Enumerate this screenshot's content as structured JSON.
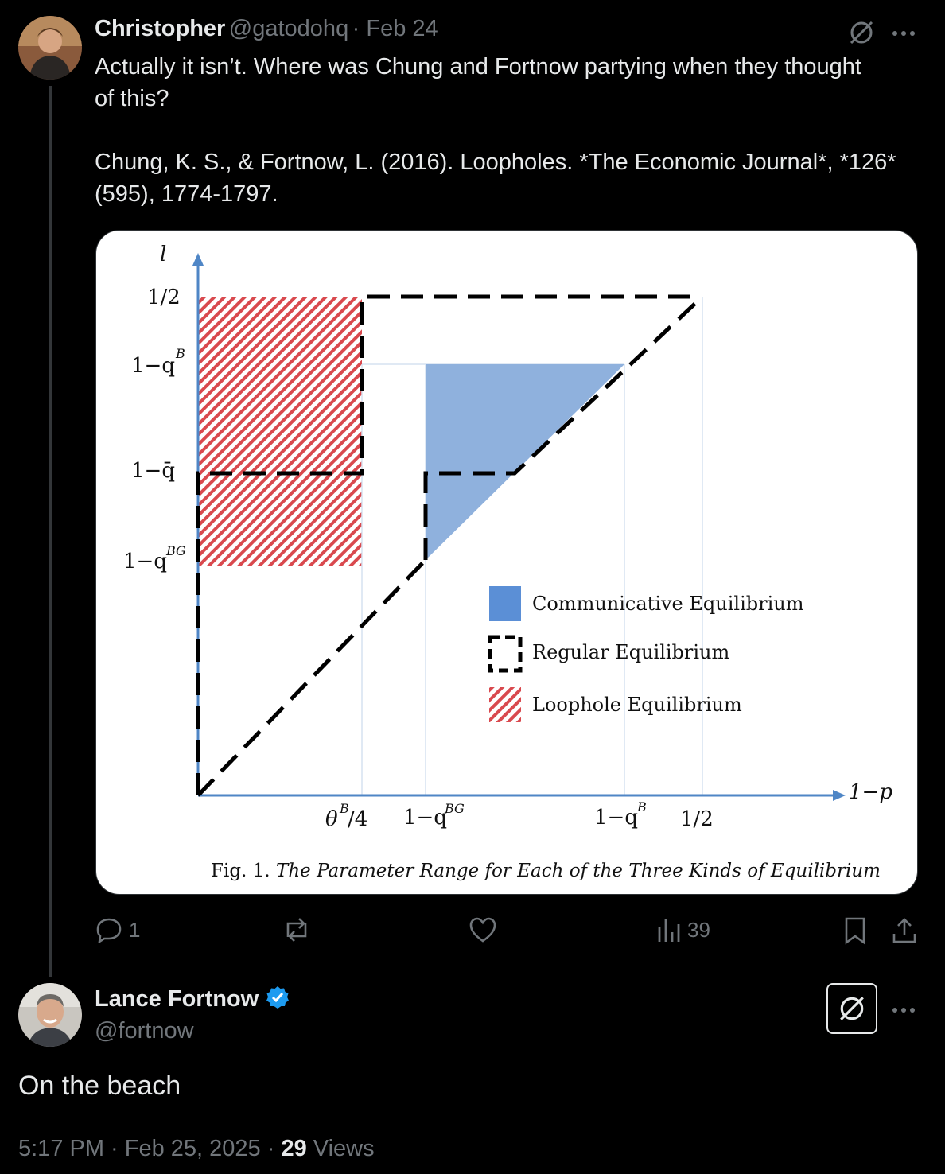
{
  "reply": {
    "author_name": "Christopher",
    "author_handle": "@gatodohq",
    "date": "· Feb 24",
    "line1": "Actually it isn’t. Where was Chung and Fortnow partying when they thought",
    "line2": "of this?",
    "line3": "Chung, K. S., & Fortnow, L. (2016). Loopholes. *The Economic Journal*, *126*",
    "line4": "(595), 1774-1797.",
    "more_icon": "more-dots-icon",
    "grok_icon": "grok-icon",
    "actions": {
      "replies": "1",
      "reposts": "",
      "likes": "",
      "views": "39"
    }
  },
  "figure": {
    "y_axis_label": "l",
    "x_axis_label": "1−p",
    "y_ticks": [
      "1/2",
      "1−q",
      "1−q̄",
      "1−q"
    ],
    "y_tick_sups": [
      "",
      "B",
      "",
      "BG"
    ],
    "x_ticks": [
      "θ",
      "/4",
      "1−q",
      "1−q",
      "1/2"
    ],
    "x_tick_sups": [
      "B",
      "BG",
      "B"
    ],
    "legend": [
      "Communicative Equilibrium",
      "Regular Equilibrium",
      "Loophole Equilibrium"
    ],
    "caption_prefix": "Fig. 1.",
    "caption_text": "The Parameter Range for Each of the Three Kinds of Equilibrium",
    "colors": {
      "communicative": "#8fb1dd",
      "legend_blue": "#5b8fd6",
      "loophole": "#d9494e",
      "axis": "#4f86c6"
    }
  },
  "main": {
    "author_name": "Lance Fortnow",
    "author_handle": "@fortnow",
    "verified_icon": "verified-badge-icon",
    "text": "On the beach",
    "time": "5:17 PM · Feb 25, 2025 · ",
    "views_count": "29",
    "views_label": " Views"
  }
}
